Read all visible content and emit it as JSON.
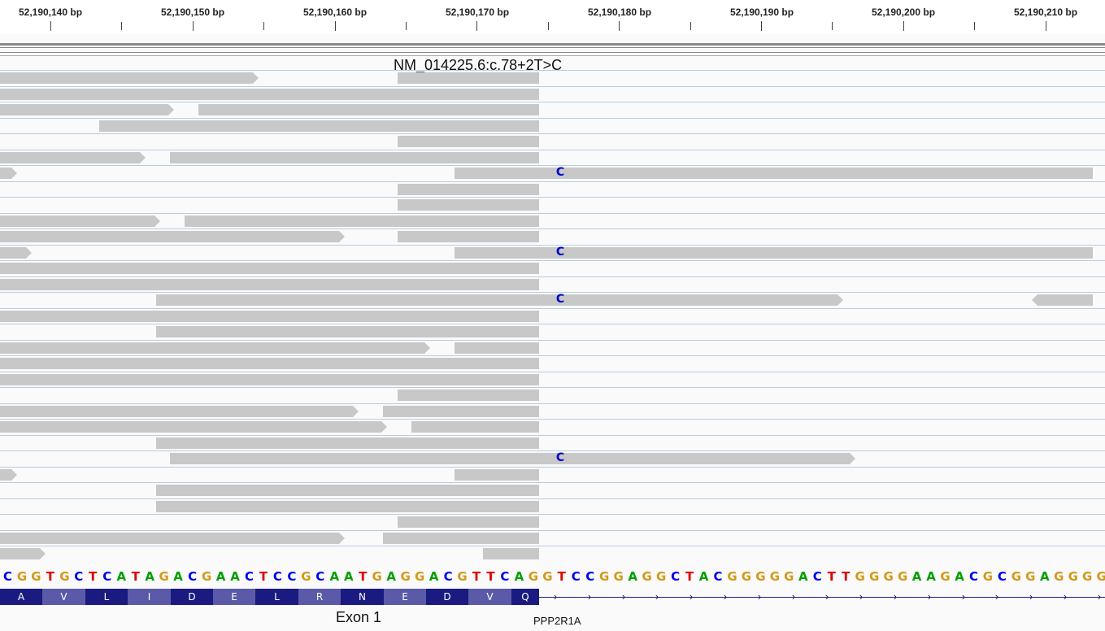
{
  "ruler": {
    "ticks": [
      "52,190,140 bp",
      "52,190,150 bp",
      "52,190,160 bp",
      "52,190,170 bp",
      "52,190,180 bp",
      "52,190,190 bp",
      "52,190,200 bp",
      "52,190,210 bp"
    ]
  },
  "variant": {
    "label": "NM_014225.6:c.78+2T>C"
  },
  "alignment": {
    "mismatch_base": "C",
    "mismatch_color": "#0000cc",
    "read_color": "#c8c8c8",
    "mismatch_read_count": 4
  },
  "sequence": "CGGTGCTCATAGACGAACTCCGCAATGAGGACGTTCAGGTCCGGAGGCTACGGGGGACTTGGGGAAGACGCGGAGGGG",
  "base_colors": {
    "A": "#00a000",
    "C": "#0000ee",
    "G": "#d19a1a",
    "T": "#dd0000"
  },
  "translation": {
    "amino_acids": [
      "A",
      "V",
      "L",
      "I",
      "D",
      "E",
      "L",
      "R",
      "N",
      "E",
      "D",
      "V",
      "Q"
    ]
  },
  "gene": {
    "exon_label": "Exon 1",
    "name": "PPP2R1A",
    "colors": [
      "#1a1a80",
      "#5a5aa8"
    ]
  }
}
